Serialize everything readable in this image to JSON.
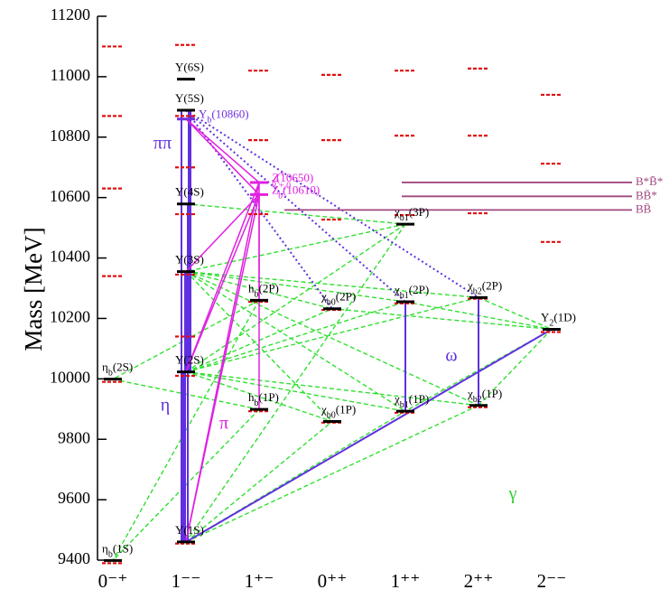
{
  "chart_data": {
    "type": "spectrum",
    "ylabel": "Mass [MeV]",
    "ylim": [
      9400,
      11200
    ],
    "yticks": [
      9400,
      9600,
      9800,
      10000,
      10200,
      10400,
      10600,
      10800,
      11000,
      11200
    ],
    "level_color": "#000000",
    "predicted_color": "#e01010",
    "columns": [
      {
        "label": "0⁻⁺",
        "states": [
          {
            "symbol": "η",
            "sub": "b",
            "tail": "(1S)",
            "mass": 9399
          },
          {
            "symbol": "η",
            "sub": "b",
            "tail": "(2S)",
            "mass": 9999
          }
        ],
        "predicted": [
          9390,
          9990,
          10340,
          10630,
          10870,
          11100
        ]
      },
      {
        "label": "1⁻⁻",
        "states": [
          {
            "symbol": "Υ",
            "tail": "(1S)",
            "mass": 9460
          },
          {
            "symbol": "Υ",
            "tail": "(2S)",
            "mass": 10023
          },
          {
            "symbol": "Υ",
            "tail": "(3S)",
            "mass": 10355
          },
          {
            "symbol": "Υ",
            "tail": "(4S)",
            "mass": 10579
          },
          {
            "symbol": "Υ",
            "tail": "(5S)",
            "mass": 10889
          },
          {
            "symbol": "Υ",
            "tail": "(6S)",
            "mass": 10992
          },
          {
            "symbol": "Υ",
            "sub": "b",
            "tail": "(10860)",
            "mass": 10860,
            "color": "#7030e0"
          }
        ],
        "predicted": [
          9455,
          10010,
          10140,
          10345,
          10545,
          10700,
          10870,
          11105
        ]
      },
      {
        "label": "1⁺⁻",
        "states": [
          {
            "symbol": "h",
            "sub": "b",
            "tail": "(1P)",
            "mass": 9899
          },
          {
            "symbol": "h",
            "sub": "b",
            "tail": "(2P)",
            "mass": 10260
          },
          {
            "symbol": "Z",
            "sub": "b",
            "sup": "+,0",
            "tail": "(10610)",
            "mass": 10610,
            "color": "#e020e0"
          },
          {
            "symbol": "Z",
            "sub": "b",
            "sup": "+",
            "tail": "(10650)",
            "mass": 10650,
            "color": "#e020e0"
          }
        ],
        "predicted": [
          9893,
          10255,
          10545,
          10790,
          11020
        ]
      },
      {
        "label": "0⁺⁺",
        "states": [
          {
            "symbol": "χ",
            "sub": "b0",
            "tail": "(1P)",
            "mass": 9859
          },
          {
            "symbol": "χ",
            "sub": "b0",
            "tail": "(2P)",
            "mass": 10232
          }
        ],
        "predicted": [
          9855,
          10228,
          10527,
          10790,
          11006
        ]
      },
      {
        "label": "1⁺⁺",
        "states": [
          {
            "symbol": "χ",
            "sub": "b1",
            "tail": "(1P)",
            "mass": 9893
          },
          {
            "symbol": "χ",
            "sub": "b1",
            "tail": "(2P)",
            "mass": 10255
          },
          {
            "symbol": "χ",
            "sub": "b1",
            "tail": "(3P)",
            "mass": 10512
          }
        ],
        "predicted": [
          9888,
          10250,
          10542,
          10805,
          11020
        ]
      },
      {
        "label": "2⁺⁺",
        "states": [
          {
            "symbol": "χ",
            "sub": "b2",
            "tail": "(1P)",
            "mass": 9912
          },
          {
            "symbol": "χ",
            "sub": "b2",
            "tail": "(2P)",
            "mass": 10269
          }
        ],
        "predicted": [
          9906,
          10265,
          10548,
          10805,
          11027
        ]
      },
      {
        "label": "2⁻⁻",
        "states": [
          {
            "symbol": "Υ",
            "sub": "2",
            "tail": "(1D)",
            "mass": 10164
          }
        ],
        "predicted": [
          10155,
          10453,
          10712,
          10940
        ]
      }
    ],
    "thresholds": [
      {
        "label": "B*B̄*",
        "mass": 10650
      },
      {
        "label": "BB̄*",
        "mass": 10604
      },
      {
        "label": "BB̄",
        "mass": 10559
      }
    ],
    "threshold_color": "#a04880",
    "annotations": [
      {
        "text": "ππ",
        "color": "#6030e0"
      },
      {
        "text": "η",
        "color": "#6030e0"
      },
      {
        "text": "π",
        "color": "#e020e0"
      },
      {
        "text": "ω",
        "color": "#6030e0"
      },
      {
        "text": "γ",
        "color": "#30d030"
      }
    ]
  }
}
